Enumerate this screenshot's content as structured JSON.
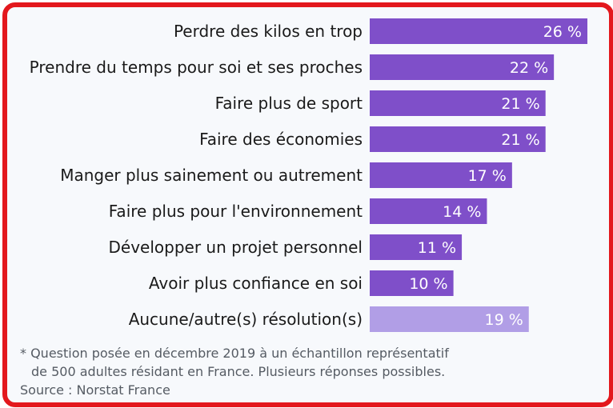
{
  "chart_data": {
    "type": "bar",
    "orientation": "horizontal",
    "categories": [
      "Perdre des kilos en trop",
      "Prendre du temps pour soi et ses proches",
      "Faire plus de sport",
      "Faire des économies",
      "Manger plus sainement ou autrement",
      "Faire plus pour l'environnement",
      "Développer un projet personnel",
      "Avoir plus confiance en soi",
      "Aucune/autre(s) résolution(s)"
    ],
    "values": [
      26,
      22,
      21,
      21,
      17,
      14,
      11,
      10,
      19
    ],
    "value_labels": [
      "26 %",
      "22 %",
      "21 %",
      "21 %",
      "17 %",
      "14 %",
      "11 %",
      "10 %",
      "19 %"
    ],
    "bar_colors": [
      "#7f4fc9",
      "#7f4fc9",
      "#7f4fc9",
      "#7f4fc9",
      "#7f4fc9",
      "#7f4fc9",
      "#7f4fc9",
      "#7f4fc9",
      "#b19ee6"
    ],
    "xlim": [
      0,
      26
    ],
    "grid": false,
    "legend": "none"
  },
  "notes": {
    "line1": "* Question posée en décembre 2019 à un échantillon représentatif",
    "line2": "de 500 adultes résidant en France. Plusieurs réponses possibles.",
    "source": "Source : Norstat France"
  },
  "colors": {
    "frame": "#e3181d",
    "background": "#f7f9fc",
    "text": "#1a1a1a",
    "note_text": "#555b63"
  }
}
